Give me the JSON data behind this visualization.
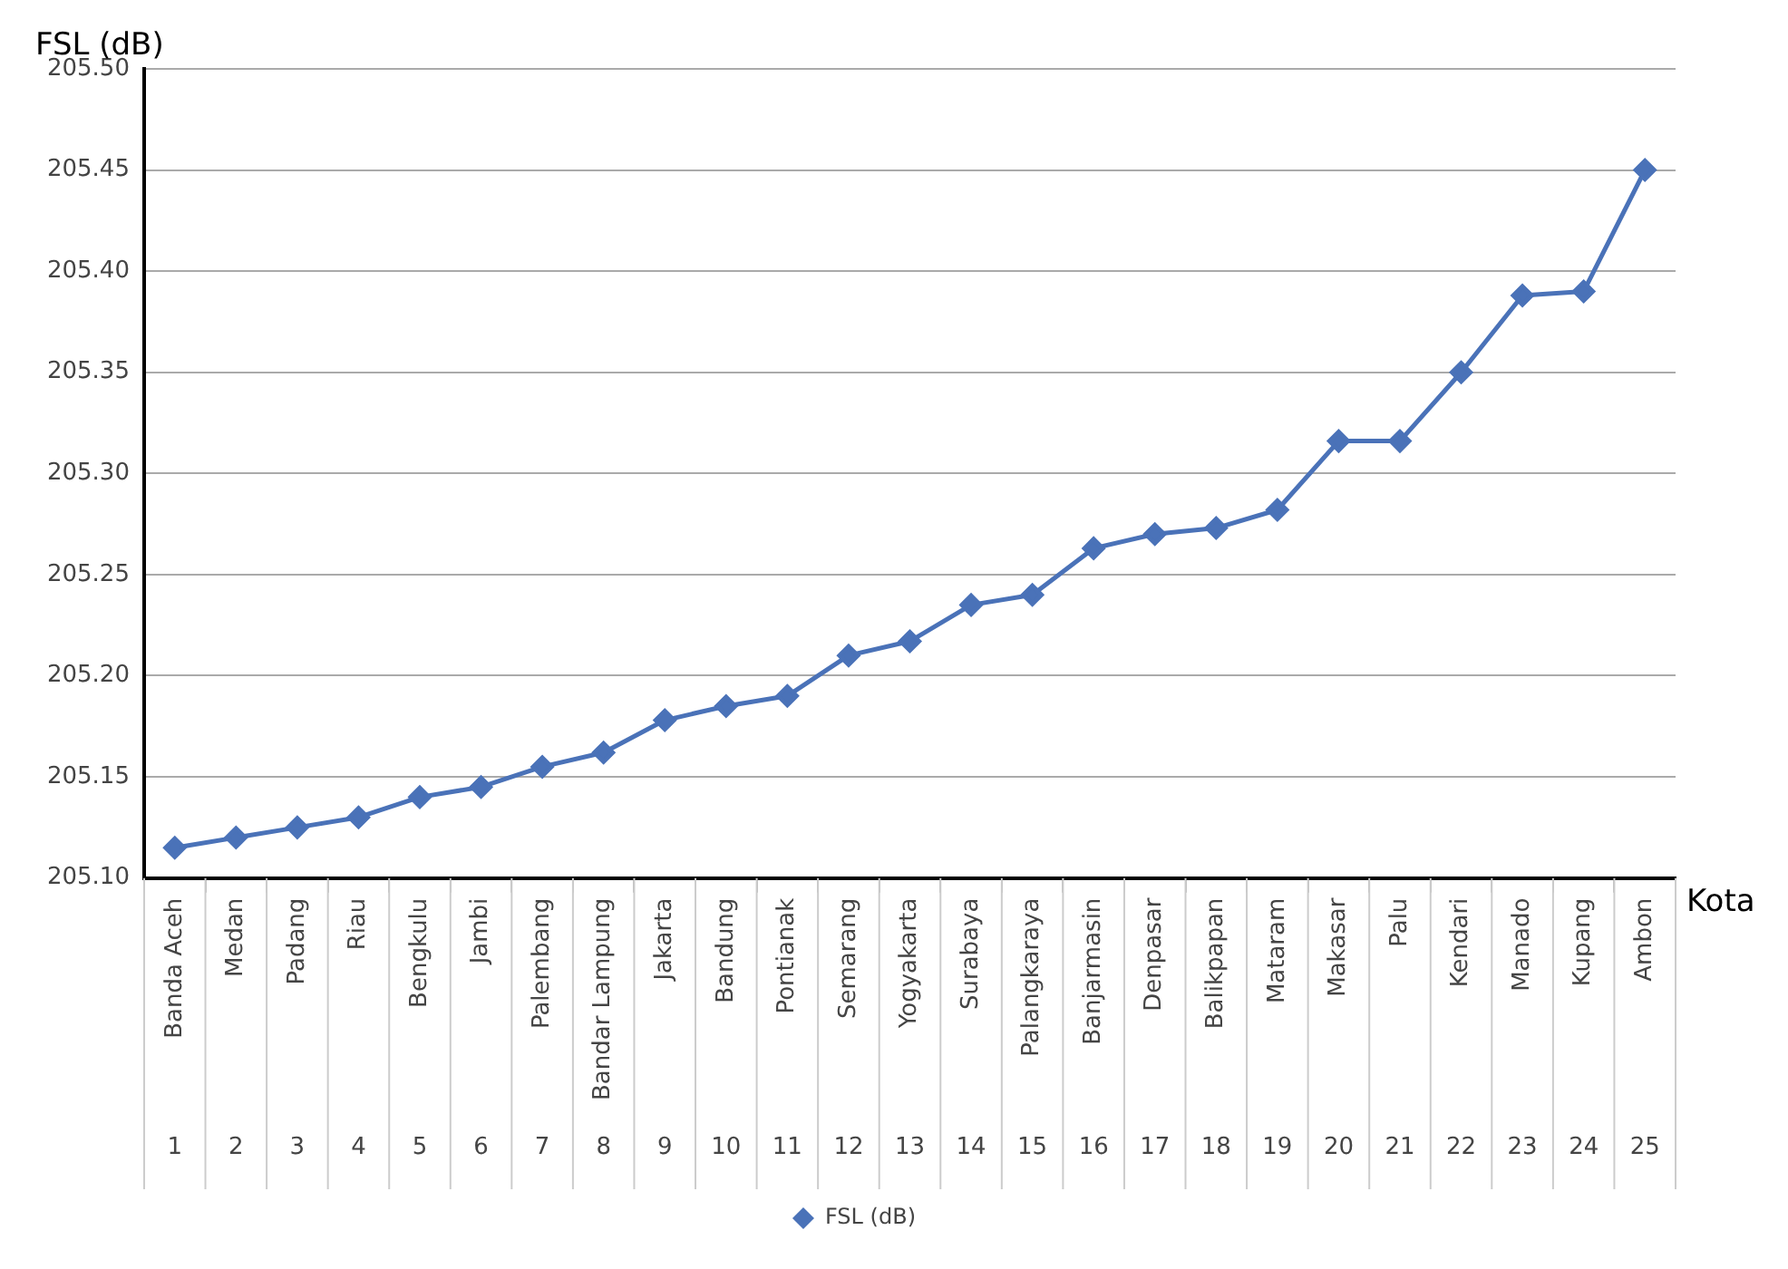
{
  "chart_data": {
    "type": "line",
    "ylabel": "FSL (dB)",
    "xlabel": "Kota",
    "categories": [
      "Banda Aceh",
      "Medan",
      "Padang",
      "Riau",
      "Bengkulu",
      "Jambi",
      "Palembang",
      "Bandar Lampung",
      "Jakarta",
      "Bandung",
      "Pontianak",
      "Semarang",
      "Yogyakarta",
      "Surabaya",
      "Palangkaraya",
      "Banjarmasin",
      "Denpasar",
      "Balikpapan",
      "Mataram",
      "Makasar",
      "Palu",
      "Kendari",
      "Manado",
      "Kupang",
      "Ambon"
    ],
    "series": [
      {
        "name": "FSL (dB)",
        "color": "#4a72b8",
        "values": [
          205.115,
          205.12,
          205.125,
          205.13,
          205.14,
          205.145,
          205.155,
          205.162,
          205.178,
          205.185,
          205.19,
          205.21,
          205.217,
          205.235,
          205.24,
          205.263,
          205.27,
          205.273,
          205.282,
          205.316,
          205.316,
          205.35,
          205.388,
          205.39,
          205.45
        ]
      }
    ],
    "annotations": [
      "1 2 3 4 5 6 7 8 9 10 11 12 13 14 15 16 17 18 19 20 21 22 23 24 25"
    ],
    "ylim": [
      205.1,
      205.5
    ],
    "yticks": [
      {
        "value": 205.1,
        "label": "205.10"
      },
      {
        "value": 205.15,
        "label": "205.15"
      },
      {
        "value": 205.2,
        "label": "205.20"
      },
      {
        "value": 205.25,
        "label": "205.25"
      },
      {
        "value": 205.3,
        "label": "205.30"
      },
      {
        "value": 205.35,
        "label": "205.35"
      },
      {
        "value": 205.4,
        "label": "205.40"
      },
      {
        "value": 205.45,
        "label": "205.45"
      },
      {
        "value": 205.5,
        "label": "205.50"
      }
    ],
    "grid": "y",
    "legend": "bottom",
    "marker": "diamond",
    "line_style": "solid"
  }
}
